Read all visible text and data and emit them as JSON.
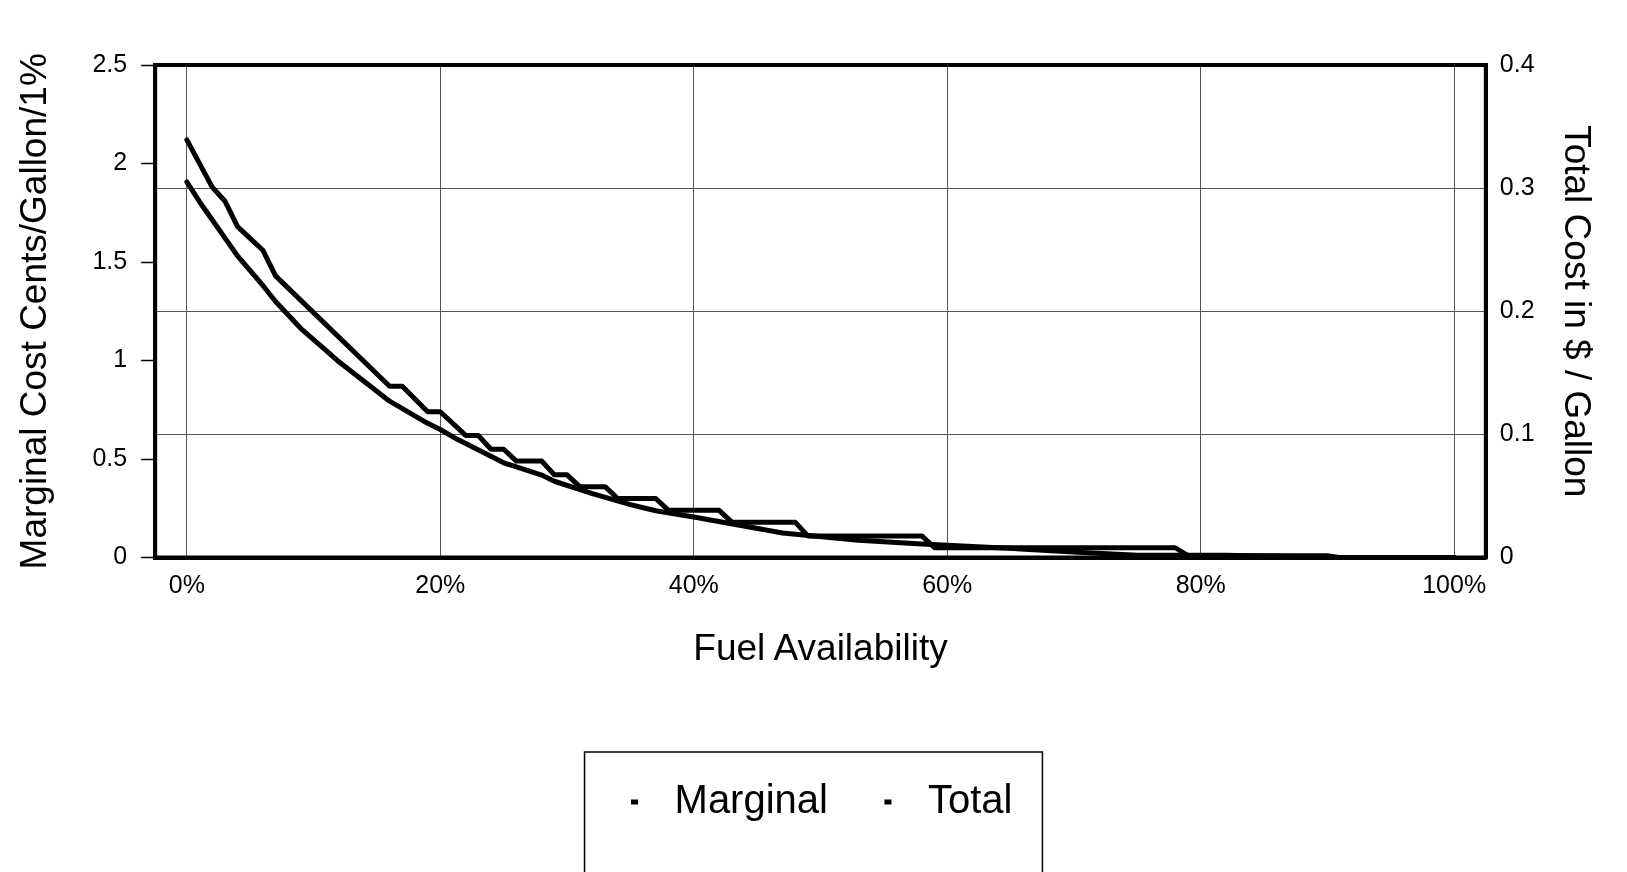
{
  "chart_data": {
    "type": "line",
    "xlabel": "Fuel Availability",
    "ylabel": "Marginal Cost Cents/Gallon/1%",
    "y2label": "Total Cost in $ / Gallon",
    "xlim": [
      -2.5,
      102.5
    ],
    "xticks": [
      {
        "value": 0,
        "label": "0%"
      },
      {
        "value": 20,
        "label": "20%"
      },
      {
        "value": 40,
        "label": "40%"
      },
      {
        "value": 60,
        "label": "60%"
      },
      {
        "value": 80,
        "label": "80%"
      },
      {
        "value": 100,
        "label": "100%"
      }
    ],
    "ylim": [
      0,
      2.5
    ],
    "yticks": [
      0,
      0.5,
      1,
      1.5,
      2,
      2.5
    ],
    "y2lim": [
      0,
      0.4
    ],
    "y2ticks": [
      0,
      0.1,
      0.2,
      0.3,
      0.4
    ],
    "grid": true,
    "legend": "bottom",
    "marker": "none",
    "line_style": "solid",
    "series": [
      {
        "name": "Marginal",
        "color": "#000000",
        "x": [
          0,
          2,
          3,
          4,
          6,
          7,
          16,
          17,
          19,
          20,
          22,
          23,
          24,
          25,
          26,
          28,
          29,
          30,
          31,
          33,
          34,
          37,
          38,
          42,
          43,
          48,
          49,
          58,
          59,
          78,
          79,
          90,
          91,
          100
        ],
        "values": [
          2.12,
          1.88,
          1.81,
          1.68,
          1.56,
          1.43,
          0.87,
          0.87,
          0.74,
          0.74,
          0.62,
          0.62,
          0.55,
          0.55,
          0.49,
          0.49,
          0.42,
          0.42,
          0.36,
          0.36,
          0.3,
          0.3,
          0.24,
          0.24,
          0.18,
          0.18,
          0.11,
          0.11,
          0.05,
          0.05,
          0.01,
          0.01,
          0,
          0
        ]
      },
      {
        "name": "Total",
        "color": "#000000",
        "axis": "y2",
        "x": [
          0,
          1,
          4,
          6,
          7,
          9,
          11,
          12,
          14,
          16,
          19,
          20,
          21,
          25,
          28,
          29,
          32,
          35,
          37,
          40,
          47,
          53,
          58,
          64,
          71,
          75,
          82,
          91,
          100
        ],
        "values": [
          0.305,
          0.289,
          0.245,
          0.221,
          0.208,
          0.186,
          0.168,
          0.159,
          0.143,
          0.127,
          0.109,
          0.104,
          0.098,
          0.077,
          0.067,
          0.062,
          0.052,
          0.043,
          0.038,
          0.033,
          0.02,
          0.014,
          0.011,
          0.008,
          0.004,
          0.002,
          0.002,
          0,
          0
        ]
      }
    ]
  }
}
